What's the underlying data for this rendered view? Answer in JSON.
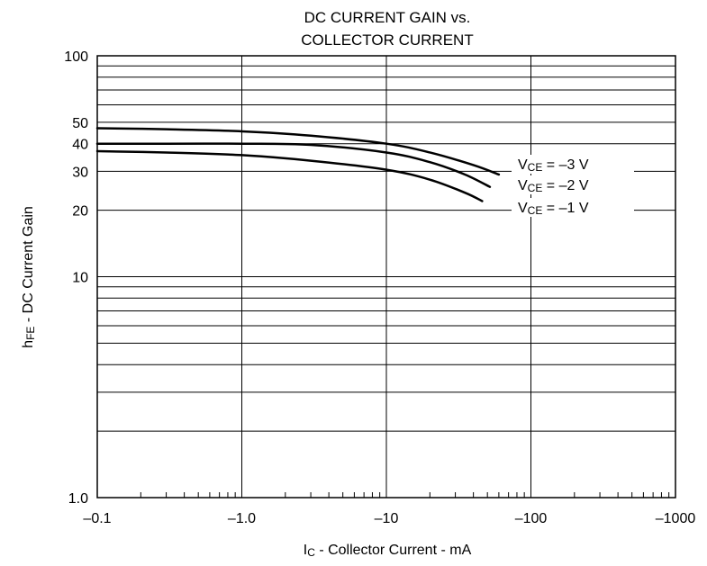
{
  "chart_data": {
    "type": "line",
    "title_lines": [
      "DC CURRENT GAIN vs.",
      "COLLECTOR CURRENT"
    ],
    "xlabel": {
      "main": "I",
      "sub": "C",
      "rest": " - Collector Current - mA"
    },
    "ylabel": {
      "main": "h",
      "sub": "FE",
      "rest": " - DC Current Gain"
    },
    "x_scale": "log",
    "y_scale": "log",
    "xlim": [
      -0.1,
      -1000
    ],
    "ylim": [
      1.0,
      100
    ],
    "x_ticks": [
      -0.1,
      -1.0,
      -10,
      -100,
      -1000
    ],
    "x_tick_labels": [
      "–0.1",
      "–1.0",
      "–10",
      "–100",
      "–1000"
    ],
    "y_ticks": [
      1.0,
      10,
      20,
      30,
      40,
      50,
      100
    ],
    "y_tick_labels": [
      "1.0",
      "10",
      "20",
      "30",
      "40",
      "50",
      "100"
    ],
    "grid": true,
    "series": [
      {
        "name": "VCE = –3 V",
        "label": {
          "main": "V",
          "sub": "CE",
          "rest": " = –3 V"
        },
        "points": [
          [
            -0.1,
            47
          ],
          [
            -0.3,
            46.5
          ],
          [
            -1.0,
            45.5
          ],
          [
            -3,
            43.5
          ],
          [
            -10,
            40
          ],
          [
            -20,
            36.5
          ],
          [
            -40,
            32
          ],
          [
            -60,
            29
          ]
        ]
      },
      {
        "name": "VCE = –2 V",
        "label": {
          "main": "V",
          "sub": "CE",
          "rest": " = –2 V"
        },
        "points": [
          [
            -0.1,
            40
          ],
          [
            -0.3,
            40
          ],
          [
            -1.0,
            40
          ],
          [
            -3,
            39.5
          ],
          [
            -10,
            36.5
          ],
          [
            -20,
            33
          ],
          [
            -35,
            29
          ],
          [
            -52,
            25.5
          ]
        ]
      },
      {
        "name": "VCE = –1 V",
        "label": {
          "main": "V",
          "sub": "CE",
          "rest": " = –1 V"
        },
        "points": [
          [
            -0.1,
            37
          ],
          [
            -0.3,
            36.5
          ],
          [
            -1.0,
            35.5
          ],
          [
            -3,
            33.5
          ],
          [
            -10,
            30.5
          ],
          [
            -20,
            27.5
          ],
          [
            -35,
            24
          ],
          [
            -46,
            22
          ]
        ]
      }
    ]
  }
}
